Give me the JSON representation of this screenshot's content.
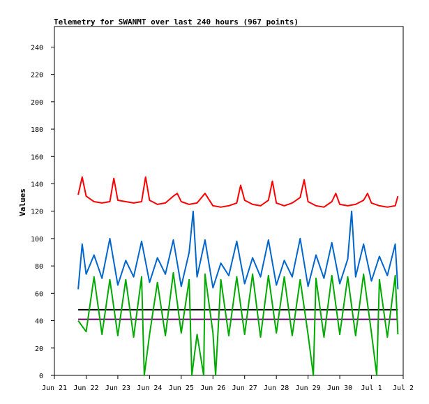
{
  "chart_data": {
    "type": "line",
    "title": "Telemetry for SWANMT over last 240 hours (967 points)",
    "xlabel": "",
    "ylabel": "Values",
    "ylim": [
      0,
      255
    ],
    "xlim": [
      "2025-06-21T00:00",
      "2025-07-02T00:00"
    ],
    "grid": false,
    "legend": "none",
    "y_ticks": [
      0,
      20,
      40,
      60,
      80,
      100,
      120,
      140,
      160,
      180,
      200,
      220,
      240
    ],
    "x_ticks": [
      {
        "label": "Jun 21",
        "x": "2025-06-21T00:00"
      },
      {
        "label": "Jun 22",
        "x": "2025-06-22T00:00"
      },
      {
        "label": "Jun 23",
        "x": "2025-06-23T00:00"
      },
      {
        "label": "Jun 24",
        "x": "2025-06-24T00:00"
      },
      {
        "label": "Jun 25",
        "x": "2025-06-25T00:00"
      },
      {
        "label": "Jun 26",
        "x": "2025-06-26T00:00"
      },
      {
        "label": "Jun 27",
        "x": "2025-06-27T00:00"
      },
      {
        "label": "Jun 28",
        "x": "2025-06-28T00:00"
      },
      {
        "label": "Jun 29",
        "x": "2025-06-29T00:00"
      },
      {
        "label": "Jun 30",
        "x": "2025-06-30T00:00"
      },
      {
        "label": "Jul 1",
        "x": "2025-07-01T00:00"
      },
      {
        "label": "Jul 2",
        "x": "2025-07-02T00:00"
      }
    ],
    "series": [
      {
        "color": "#ff0000",
        "x": [
          "2025-06-21T18:00",
          "2025-06-21T21:00",
          "2025-06-22T00:00",
          "2025-06-22T06:00",
          "2025-06-22T12:00",
          "2025-06-22T18:00",
          "2025-06-22T21:00",
          "2025-06-23T00:00",
          "2025-06-23T06:00",
          "2025-06-23T12:00",
          "2025-06-23T18:00",
          "2025-06-23T21:00",
          "2025-06-24T00:00",
          "2025-06-24T06:00",
          "2025-06-24T12:00",
          "2025-06-24T18:00",
          "2025-06-24T21:00",
          "2025-06-25T00:00",
          "2025-06-25T06:00",
          "2025-06-25T12:00",
          "2025-06-25T18:00",
          "2025-06-26T00:00",
          "2025-06-26T06:00",
          "2025-06-26T12:00",
          "2025-06-26T18:00",
          "2025-06-26T21:00",
          "2025-06-27T00:00",
          "2025-06-27T06:00",
          "2025-06-27T12:00",
          "2025-06-27T18:00",
          "2025-06-27T21:00",
          "2025-06-28T00:00",
          "2025-06-28T06:00",
          "2025-06-28T12:00",
          "2025-06-28T18:00",
          "2025-06-28T21:00",
          "2025-06-29T00:00",
          "2025-06-29T06:00",
          "2025-06-29T12:00",
          "2025-06-29T18:00",
          "2025-06-29T21:00",
          "2025-06-30T00:00",
          "2025-06-30T06:00",
          "2025-06-30T12:00",
          "2025-06-30T18:00",
          "2025-06-30T21:00",
          "2025-07-01T00:00",
          "2025-07-01T06:00",
          "2025-07-01T12:00",
          "2025-07-01T18:00",
          "2025-07-01T20:00"
        ],
        "y": [
          132,
          145,
          131,
          127,
          126,
          127,
          144,
          128,
          127,
          126,
          127,
          145,
          128,
          125,
          126,
          131,
          133,
          127,
          125,
          126,
          133,
          124,
          123,
          124,
          126,
          139,
          128,
          125,
          124,
          128,
          142,
          126,
          124,
          126,
          130,
          143,
          127,
          124,
          123,
          127,
          133,
          125,
          124,
          125,
          128,
          133,
          126,
          124,
          123,
          124,
          131
        ]
      },
      {
        "color": "#0066cc",
        "x": [
          "2025-06-21T18:00",
          "2025-06-21T21:00",
          "2025-06-22T00:00",
          "2025-06-22T06:00",
          "2025-06-22T12:00",
          "2025-06-22T18:00",
          "2025-06-23T00:00",
          "2025-06-23T06:00",
          "2025-06-23T12:00",
          "2025-06-23T18:00",
          "2025-06-24T00:00",
          "2025-06-24T06:00",
          "2025-06-24T12:00",
          "2025-06-24T18:00",
          "2025-06-25T00:00",
          "2025-06-25T06:00",
          "2025-06-25T09:00",
          "2025-06-25T12:00",
          "2025-06-25T18:00",
          "2025-06-26T00:00",
          "2025-06-26T06:00",
          "2025-06-26T12:00",
          "2025-06-26T18:00",
          "2025-06-27T00:00",
          "2025-06-27T06:00",
          "2025-06-27T12:00",
          "2025-06-27T18:00",
          "2025-06-28T00:00",
          "2025-06-28T06:00",
          "2025-06-28T12:00",
          "2025-06-28T18:00",
          "2025-06-29T00:00",
          "2025-06-29T06:00",
          "2025-06-29T12:00",
          "2025-06-29T18:00",
          "2025-06-30T00:00",
          "2025-06-30T06:00",
          "2025-06-30T09:00",
          "2025-06-30T12:00",
          "2025-06-30T18:00",
          "2025-07-01T00:00",
          "2025-07-01T06:00",
          "2025-07-01T12:00",
          "2025-07-01T18:00",
          "2025-07-01T20:00"
        ],
        "y": [
          63,
          96,
          74,
          88,
          71,
          100,
          66,
          84,
          72,
          98,
          68,
          86,
          74,
          99,
          65,
          90,
          120,
          72,
          99,
          64,
          82,
          73,
          98,
          67,
          86,
          72,
          99,
          66,
          84,
          72,
          100,
          65,
          88,
          71,
          97,
          67,
          85,
          120,
          72,
          96,
          69,
          87,
          73,
          96,
          63
        ]
      },
      {
        "color": "#000000",
        "x": [
          "2025-06-21T18:00",
          "2025-07-01T20:00"
        ],
        "y": [
          48,
          48
        ]
      },
      {
        "color": "#660066",
        "x": [
          "2025-06-21T18:00",
          "2025-07-01T20:00"
        ],
        "y": [
          41,
          41
        ]
      },
      {
        "color": "#00aa00",
        "x": [
          "2025-06-21T18:00",
          "2025-06-22T00:00",
          "2025-06-22T06:00",
          "2025-06-22T12:00",
          "2025-06-22T18:00",
          "2025-06-23T00:00",
          "2025-06-23T06:00",
          "2025-06-23T12:00",
          "2025-06-23T18:00",
          "2025-06-23T20:00",
          "2025-06-24T00:00",
          "2025-06-24T06:00",
          "2025-06-24T12:00",
          "2025-06-24T18:00",
          "2025-06-25T00:00",
          "2025-06-25T06:00",
          "2025-06-25T08:00",
          "2025-06-25T12:00",
          "2025-06-25T17:00",
          "2025-06-25T18:00",
          "2025-06-26T00:00",
          "2025-06-26T02:00",
          "2025-06-26T06:00",
          "2025-06-26T12:00",
          "2025-06-26T18:00",
          "2025-06-27T00:00",
          "2025-06-27T06:00",
          "2025-06-27T12:00",
          "2025-06-27T18:00",
          "2025-06-28T00:00",
          "2025-06-28T06:00",
          "2025-06-28T12:00",
          "2025-06-28T18:00",
          "2025-06-29T00:00",
          "2025-06-29T04:00",
          "2025-06-29T06:00",
          "2025-06-29T12:00",
          "2025-06-29T18:00",
          "2025-06-30T00:00",
          "2025-06-30T06:00",
          "2025-06-30T12:00",
          "2025-06-30T18:00",
          "2025-07-01T00:00",
          "2025-07-01T04:00",
          "2025-07-01T06:00",
          "2025-07-01T12:00",
          "2025-07-01T18:00",
          "2025-07-01T20:00"
        ],
        "y": [
          40,
          32,
          72,
          30,
          70,
          29,
          70,
          28,
          72,
          0,
          30,
          68,
          29,
          75,
          31,
          70,
          0,
          30,
          0,
          74,
          31,
          0,
          70,
          29,
          72,
          30,
          74,
          28,
          73,
          31,
          72,
          29,
          70,
          30,
          0,
          71,
          28,
          73,
          30,
          72,
          29,
          74,
          31,
          0,
          70,
          28,
          73,
          30
        ]
      }
    ]
  }
}
